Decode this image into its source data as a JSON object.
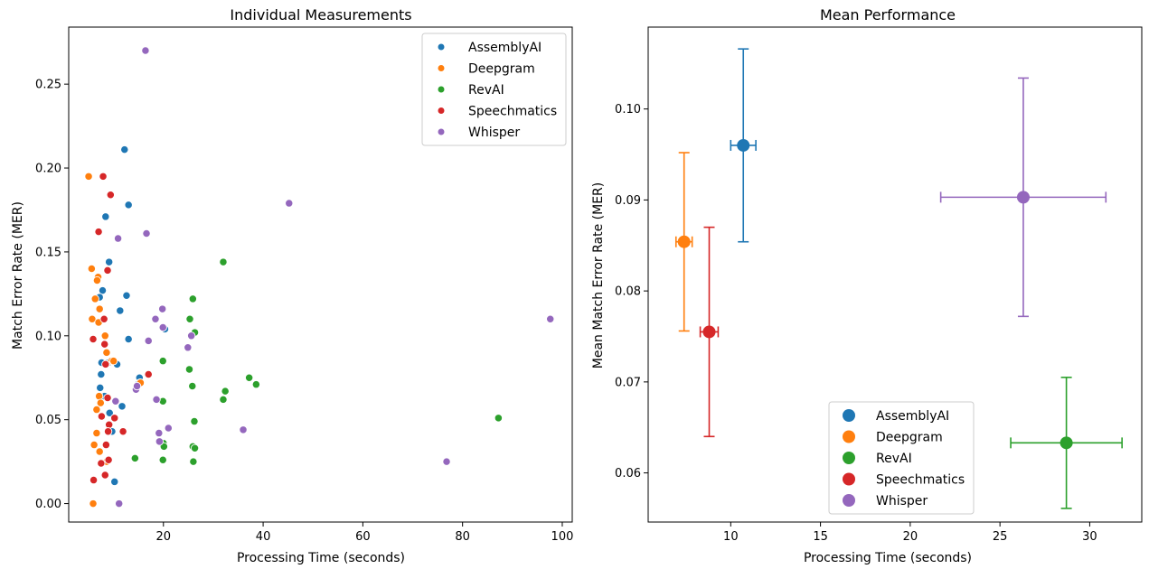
{
  "colors": {
    "AssemblyAI": "#1f77b4",
    "Deepgram": "#ff7f0e",
    "RevAI": "#2ca02c",
    "Speechmatics": "#d62728",
    "Whisper": "#9467bd"
  },
  "chart_data": [
    {
      "type": "scatter",
      "title": "Individual Measurements",
      "xlabel": "Processing Time (seconds)",
      "ylabel": "Match Error Rate (MER)",
      "xlim": [
        1,
        102
      ],
      "ylim": [
        -0.011,
        0.284
      ],
      "xticks": [
        20,
        40,
        60,
        80,
        100
      ],
      "yticks": [
        0.0,
        0.05,
        0.1,
        0.15,
        0.2,
        0.25
      ],
      "xtick_labels": [
        "20",
        "40",
        "60",
        "80",
        "100"
      ],
      "ytick_labels": [
        "0.00",
        "0.05",
        "0.10",
        "0.15",
        "0.20",
        "0.25"
      ],
      "grid": false,
      "legend": "top-right",
      "series": [
        {
          "name": "AssemblyAI",
          "points": [
            [
              12.2,
              0.211
            ],
            [
              13.0,
              0.178
            ],
            [
              8.4,
              0.171
            ],
            [
              9.1,
              0.144
            ],
            [
              12.6,
              0.124
            ],
            [
              7.8,
              0.127
            ],
            [
              7.2,
              0.123
            ],
            [
              11.3,
              0.115
            ],
            [
              20.3,
              0.104
            ],
            [
              13.0,
              0.098
            ],
            [
              7.6,
              0.084
            ],
            [
              9.0,
              0.084
            ],
            [
              10.7,
              0.083
            ],
            [
              15.2,
              0.075
            ],
            [
              15.3,
              0.072
            ],
            [
              14.9,
              0.071
            ],
            [
              7.5,
              0.077
            ],
            [
              7.3,
              0.069
            ],
            [
              8.2,
              0.064
            ],
            [
              11.7,
              0.058
            ],
            [
              9.2,
              0.054
            ],
            [
              9.7,
              0.043
            ],
            [
              10.2,
              0.013
            ]
          ]
        },
        {
          "name": "Deepgram",
          "points": [
            [
              5.0,
              0.195
            ],
            [
              5.6,
              0.14
            ],
            [
              6.9,
              0.135
            ],
            [
              6.7,
              0.133
            ],
            [
              6.3,
              0.122
            ],
            [
              7.2,
              0.116
            ],
            [
              5.7,
              0.11
            ],
            [
              7.0,
              0.108
            ],
            [
              8.3,
              0.1
            ],
            [
              8.6,
              0.09
            ],
            [
              9.6,
              0.085
            ],
            [
              10.0,
              0.085
            ],
            [
              8.5,
              0.083
            ],
            [
              15.4,
              0.072
            ],
            [
              7.1,
              0.064
            ],
            [
              7.4,
              0.06
            ],
            [
              6.6,
              0.056
            ],
            [
              6.6,
              0.042
            ],
            [
              6.1,
              0.035
            ],
            [
              7.2,
              0.031
            ],
            [
              8.6,
              0.025
            ],
            [
              5.9,
              0.0
            ]
          ]
        },
        {
          "name": "RevAI",
          "points": [
            [
              32.0,
              0.144
            ],
            [
              25.9,
              0.122
            ],
            [
              25.3,
              0.11
            ],
            [
              26.3,
              0.102
            ],
            [
              19.9,
              0.085
            ],
            [
              25.2,
              0.08
            ],
            [
              37.2,
              0.075
            ],
            [
              38.6,
              0.071
            ],
            [
              25.8,
              0.07
            ],
            [
              32.4,
              0.067
            ],
            [
              32.0,
              0.062
            ],
            [
              19.9,
              0.061
            ],
            [
              26.2,
              0.049
            ],
            [
              87.2,
              0.051
            ],
            [
              20.0,
              0.036
            ],
            [
              20.1,
              0.034
            ],
            [
              25.9,
              0.034
            ],
            [
              26.3,
              0.033
            ],
            [
              14.3,
              0.027
            ],
            [
              19.9,
              0.026
            ],
            [
              26.0,
              0.025
            ]
          ]
        },
        {
          "name": "Speechmatics",
          "points": [
            [
              7.9,
              0.195
            ],
            [
              9.4,
              0.184
            ],
            [
              7.0,
              0.162
            ],
            [
              8.8,
              0.139
            ],
            [
              8.1,
              0.11
            ],
            [
              5.9,
              0.098
            ],
            [
              8.2,
              0.095
            ],
            [
              8.4,
              0.083
            ],
            [
              17.0,
              0.077
            ],
            [
              8.8,
              0.063
            ],
            [
              7.6,
              0.052
            ],
            [
              10.2,
              0.051
            ],
            [
              9.1,
              0.047
            ],
            [
              8.9,
              0.043
            ],
            [
              11.9,
              0.043
            ],
            [
              8.5,
              0.035
            ],
            [
              9.0,
              0.026
            ],
            [
              7.5,
              0.024
            ],
            [
              8.3,
              0.017
            ],
            [
              6.0,
              0.014
            ]
          ]
        },
        {
          "name": "Whisper",
          "points": [
            [
              16.4,
              0.27
            ],
            [
              45.2,
              0.179
            ],
            [
              16.6,
              0.161
            ],
            [
              10.9,
              0.158
            ],
            [
              19.8,
              0.116
            ],
            [
              18.4,
              0.11
            ],
            [
              97.6,
              0.11
            ],
            [
              19.9,
              0.105
            ],
            [
              25.6,
              0.1
            ],
            [
              17.0,
              0.097
            ],
            [
              24.9,
              0.093
            ],
            [
              14.5,
              0.068
            ],
            [
              14.7,
              0.07
            ],
            [
              18.6,
              0.062
            ],
            [
              10.4,
              0.061
            ],
            [
              21.0,
              0.045
            ],
            [
              36.0,
              0.044
            ],
            [
              19.1,
              0.042
            ],
            [
              19.2,
              0.037
            ],
            [
              76.8,
              0.025
            ],
            [
              11.1,
              0.0
            ]
          ]
        }
      ]
    },
    {
      "type": "scatter",
      "title": "Mean Performance",
      "xlabel": "Processing Time (seconds)",
      "ylabel": "Mean Match Error Rate (MER)",
      "xlim": [
        5.4,
        32.9
      ],
      "ylim": [
        0.0546,
        0.109
      ],
      "xticks": [
        10,
        15,
        20,
        25,
        30
      ],
      "yticks": [
        0.06,
        0.07,
        0.08,
        0.09,
        0.1
      ],
      "xtick_labels": [
        "10",
        "15",
        "20",
        "25",
        "30"
      ],
      "ytick_labels": [
        "0.06",
        "0.07",
        "0.08",
        "0.09",
        "0.10"
      ],
      "grid": false,
      "legend": "lower-center",
      "series": [
        {
          "name": "AssemblyAI",
          "x": 10.7,
          "y": 0.096,
          "xerr": 0.7,
          "yerr": 0.0106
        },
        {
          "name": "Deepgram",
          "x": 7.4,
          "y": 0.0854,
          "xerr": 0.45,
          "yerr": 0.0098
        },
        {
          "name": "RevAI",
          "x": 28.7,
          "y": 0.0633,
          "xerr": 3.1,
          "yerr": 0.0072
        },
        {
          "name": "Speechmatics",
          "x": 8.8,
          "y": 0.0755,
          "xerr": 0.5,
          "yerr": 0.0115
        },
        {
          "name": "Whisper",
          "x": 26.3,
          "y": 0.0903,
          "xerr": 4.6,
          "yerr": 0.0131
        }
      ]
    }
  ]
}
